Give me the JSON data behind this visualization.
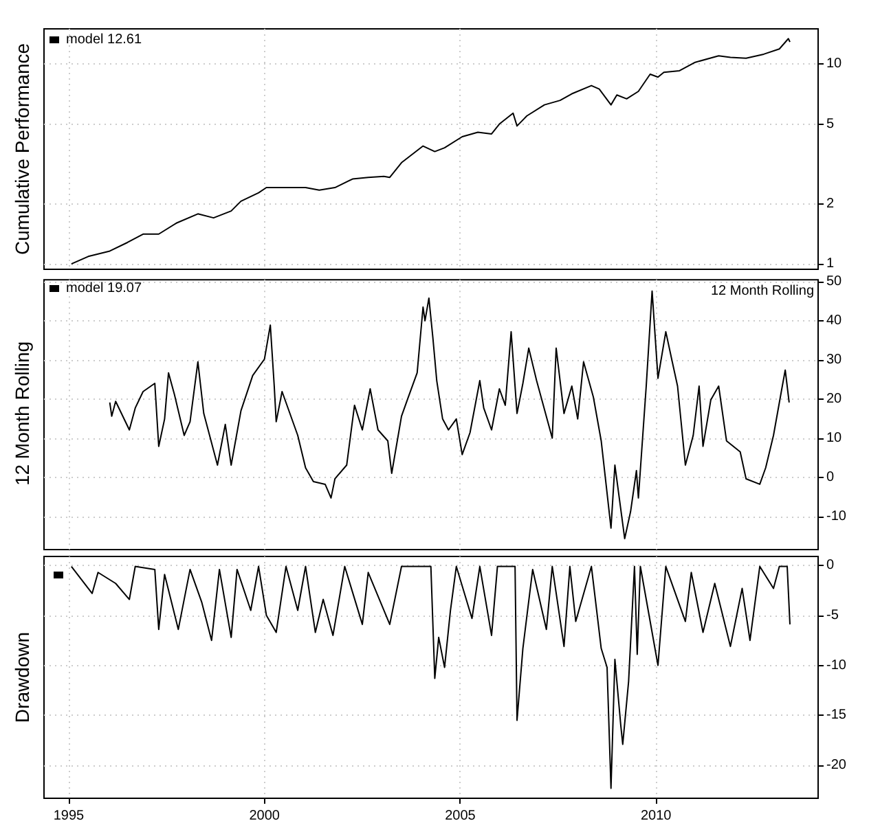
{
  "chart_data": [
    {
      "type": "line",
      "ylabel": "Cumulative Performance",
      "log": "y",
      "grid": true,
      "legend": "top left",
      "marker": "none",
      "tick_labels": "y",
      "xlim": [
        1994.37,
        2014.14
      ],
      "xticks": [
        1995,
        2000,
        2005,
        2010
      ],
      "ylim": [
        0.94,
        15
      ],
      "yticks": [
        1,
        2,
        5,
        10
      ],
      "series": [
        {
          "name": "model 12.61",
          "color": "#000000",
          "x": [
            1995.07,
            1995.5,
            1996.05,
            1996.5,
            1996.9,
            1997.3,
            1997.75,
            1998.3,
            1998.7,
            1999.15,
            1999.4,
            1999.85,
            2000.05,
            2000.55,
            2001.05,
            2001.4,
            2001.8,
            2002.25,
            2002.65,
            2003.05,
            2003.2,
            2003.5,
            2004.05,
            2004.35,
            2004.6,
            2005.05,
            2005.45,
            2005.8,
            2006.0,
            2006.35,
            2006.45,
            2006.7,
            2007.15,
            2007.55,
            2007.85,
            2008.35,
            2008.55,
            2008.85,
            2009.0,
            2009.25,
            2009.55,
            2009.85,
            2010.05,
            2010.2,
            2010.6,
            2011.0,
            2011.6,
            2011.9,
            2012.3,
            2012.75,
            2013.15,
            2013.38,
            2013.42
          ],
          "values": [
            1.0,
            1.09,
            1.16,
            1.28,
            1.41,
            1.41,
            1.6,
            1.78,
            1.7,
            1.84,
            2.06,
            2.27,
            2.41,
            2.41,
            2.41,
            2.34,
            2.41,
            2.66,
            2.71,
            2.74,
            2.71,
            3.21,
            3.89,
            3.65,
            3.81,
            4.33,
            4.56,
            4.47,
            5.01,
            5.68,
            4.9,
            5.5,
            6.25,
            6.58,
            7.1,
            7.8,
            7.5,
            6.25,
            7.0,
            6.7,
            7.3,
            8.9,
            8.6,
            9.1,
            9.26,
            10.2,
            11.0,
            10.8,
            10.7,
            11.2,
            11.9,
            13.4,
            12.9
          ]
        }
      ]
    },
    {
      "type": "line",
      "ylabel": "12 Month Rolling",
      "grid": true,
      "legend": "top left",
      "marker": "none",
      "tick_labels": "y",
      "annotations": [
        "12 Month Rolling"
      ],
      "xlim": [
        1994.37,
        2014.14
      ],
      "xticks": [
        1995,
        2000,
        2005,
        2010
      ],
      "ylim": [
        -18.5,
        50.5
      ],
      "yticks": [
        -10,
        0,
        10,
        20,
        30,
        40,
        50
      ],
      "series": [
        {
          "name": "model 19.07",
          "color": "#000000",
          "x": [
            1996.05,
            1996.1,
            1996.2,
            1996.55,
            1996.7,
            1996.9,
            1997.2,
            1997.3,
            1997.45,
            1997.55,
            1997.7,
            1997.95,
            1998.1,
            1998.3,
            1998.45,
            1998.8,
            1999.0,
            1999.15,
            1999.4,
            1999.7,
            2000.0,
            2000.15,
            2000.25,
            2000.3,
            2000.45,
            2000.85,
            2001.05,
            2001.25,
            2001.55,
            2001.7,
            2001.8,
            2002.1,
            2002.3,
            2002.5,
            2002.7,
            2002.9,
            2003.15,
            2003.25,
            2003.5,
            2003.65,
            2003.9,
            2004.05,
            2004.1,
            2004.2,
            2004.3,
            2004.4,
            2004.55,
            2004.7,
            2004.9,
            2005.05,
            2005.25,
            2005.5,
            2005.6,
            2005.8,
            2006.0,
            2006.15,
            2006.3,
            2006.45,
            2006.6,
            2006.75,
            2006.95,
            2007.35,
            2007.45,
            2007.65,
            2007.85,
            2008.0,
            2008.15,
            2008.4,
            2008.6,
            2008.85,
            2008.95,
            2009.2,
            2009.35,
            2009.5,
            2009.55,
            2009.75,
            2009.9,
            2010.05,
            2010.25,
            2010.4,
            2010.55,
            2010.75,
            2010.95,
            2011.1,
            2011.2,
            2011.4,
            2011.6,
            2011.8,
            2012.15,
            2012.3,
            2012.65,
            2012.8,
            2013.0,
            2013.2,
            2013.3,
            2013.4
          ],
          "values": [
            19.1,
            15.6,
            19.4,
            12.1,
            17.7,
            21.9,
            24,
            7.9,
            14.9,
            26.7,
            21.2,
            10.7,
            14.2,
            29.5,
            16.3,
            3.1,
            13.5,
            3.1,
            17,
            26,
            30.2,
            38.9,
            23.3,
            14.2,
            21.9,
            10.7,
            2.4,
            -1.1,
            -1.8,
            -5.3,
            -0.4,
            3.1,
            18.4,
            12.1,
            22.6,
            12.1,
            9.3,
            1.0,
            15.6,
            19.8,
            26.7,
            43.5,
            40,
            45.8,
            35.8,
            24.7,
            14.9,
            12.1,
            14.9,
            5.8,
            11.4,
            24.7,
            17.7,
            12.1,
            22.6,
            18.4,
            37.2,
            16.3,
            24,
            33,
            24.7,
            10,
            33,
            16.3,
            23.3,
            14.9,
            29.5,
            20.5,
            9.3,
            -13,
            3.1,
            -15.7,
            -8.8,
            1.7,
            -5.3,
            23.3,
            47.6,
            25.3,
            37.2,
            30.2,
            23.3,
            3.1,
            10.7,
            23.3,
            7.9,
            19.8,
            23.3,
            9.3,
            6.5,
            -0.4,
            -1.8,
            2.4,
            10.7,
            21.9,
            27.4,
            19.1
          ]
        }
      ]
    },
    {
      "type": "line",
      "ylabel": "Drawdown",
      "grid": true,
      "marker": "none",
      "xlim": [
        1994.37,
        2014.14
      ],
      "xticks": [
        1995,
        2000,
        2005,
        2010
      ],
      "ylim": [
        -23.3,
        0.9
      ],
      "yticks": [
        -20,
        -15,
        -10,
        -5,
        0
      ],
      "series": [
        {
          "color": "#000000",
          "x": [
            1995.07,
            1995.6,
            1995.75,
            1996.2,
            1996.55,
            1996.7,
            1997.2,
            1997.3,
            1997.45,
            1997.8,
            1998.1,
            1998.4,
            1998.65,
            1998.85,
            1999.15,
            1999.3,
            1999.65,
            1999.85,
            2000.05,
            2000.3,
            2000.55,
            2000.85,
            2001.05,
            2001.3,
            2001.5,
            2001.75,
            2002.05,
            2002.5,
            2002.65,
            2003.2,
            2003.5,
            2004.25,
            2004.35,
            2004.45,
            2004.6,
            2004.75,
            2004.9,
            2005.3,
            2005.5,
            2005.8,
            2005.95,
            2006.4,
            2006.45,
            2006.6,
            2006.85,
            2007.2,
            2007.35,
            2007.65,
            2007.8,
            2007.95,
            2008.35,
            2008.6,
            2008.75,
            2008.85,
            2008.95,
            2009.1,
            2009.15,
            2009.3,
            2009.45,
            2009.52,
            2009.6,
            2010.05,
            2010.25,
            2010.75,
            2010.9,
            2011.2,
            2011.5,
            2011.9,
            2012.2,
            2012.4,
            2012.65,
            2013.0,
            2013.15,
            2013.35,
            2013.42
          ],
          "values": [
            -0.1,
            -2.8,
            -0.7,
            -1.8,
            -3.4,
            -0.1,
            -0.4,
            -6.4,
            -0.9,
            -6.4,
            -0.4,
            -3.7,
            -7.5,
            -0.4,
            -7.2,
            -0.4,
            -4.5,
            -0.1,
            -5,
            -6.7,
            -0.1,
            -4.5,
            -0.1,
            -6.7,
            -3.4,
            -7.0,
            -0.1,
            -5.9,
            -0.7,
            -5.9,
            -0.1,
            -0.1,
            -11.3,
            -7.2,
            -10.2,
            -4.5,
            -0.1,
            -5.3,
            -0.1,
            -7,
            -0.1,
            -0.1,
            -15.5,
            -8.3,
            -0.4,
            -6.4,
            -0.1,
            -8.1,
            -0.1,
            -5.6,
            -0.1,
            -8.3,
            -10.2,
            -22.3,
            -9.4,
            -16,
            -17.9,
            -11.6,
            -0.1,
            -8.9,
            -0.1,
            -10,
            -0.1,
            -5.6,
            -0.7,
            -6.7,
            -1.8,
            -8.1,
            -2.3,
            -7.5,
            -0.1,
            -2.3,
            -0.1,
            -0.1,
            -5.9
          ]
        }
      ]
    }
  ]
}
